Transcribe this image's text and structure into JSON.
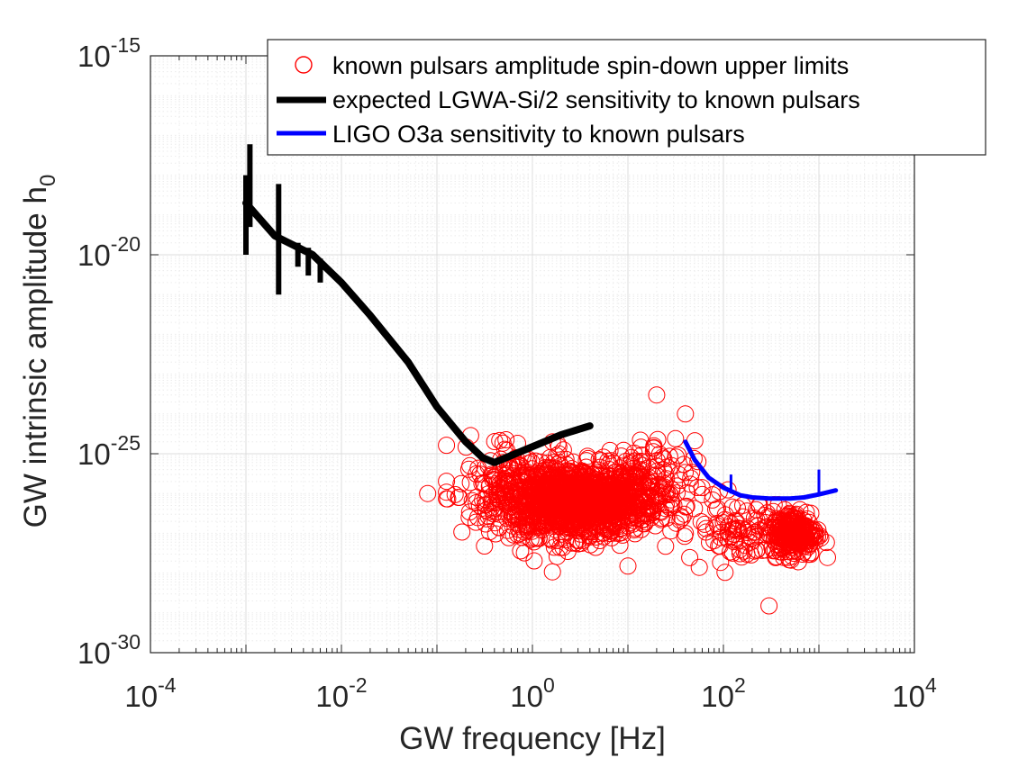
{
  "chart_data": {
    "type": "scatter",
    "xscale": "log",
    "yscale": "log",
    "xlim": [
      0.0001,
      10000
    ],
    "ylim": [
      1e-30,
      1e-15
    ],
    "grid": true,
    "minor_grid": true,
    "legend_location": "top-right",
    "xlabel": "GW frequency [Hz]",
    "ylabel_main": "GW intrinsic amplitude h",
    "ylabel_sub": "0",
    "x_ticks": [
      {
        "base": "10",
        "exp": "-4"
      },
      {
        "base": "10",
        "exp": "-2"
      },
      {
        "base": "10",
        "exp": "0"
      },
      {
        "base": "10",
        "exp": "2"
      },
      {
        "base": "10",
        "exp": "4"
      }
    ],
    "y_ticks": [
      {
        "base": "10",
        "exp": "-30"
      },
      {
        "base": "10",
        "exp": "-25"
      },
      {
        "base": "10",
        "exp": "-20"
      },
      {
        "base": "10",
        "exp": "-15"
      }
    ],
    "series": [
      {
        "name": "known pulsars amplitude spin-down upper limits",
        "kind": "scatter",
        "marker": "open-circle",
        "color": "#ff0000",
        "clusters": [
          {
            "center_log_f": 0.45,
            "center_log_h": -26.2,
            "spread_log_f": 0.42,
            "spread_log_h": 0.55,
            "count": 1400
          },
          {
            "center_log_f": -0.25,
            "center_log_h": -25.4,
            "spread_log_f": 0.25,
            "spread_log_h": 0.6,
            "count": 80
          },
          {
            "center_log_f": 1.1,
            "center_log_h": -25.8,
            "spread_log_f": 0.3,
            "spread_log_h": 0.7,
            "count": 120
          },
          {
            "center_log_f": 2.75,
            "center_log_h": -27.0,
            "spread_log_f": 0.12,
            "spread_log_h": 0.35,
            "count": 260
          },
          {
            "center_log_f": 2.2,
            "center_log_h": -26.9,
            "spread_log_f": 0.3,
            "spread_log_h": 0.5,
            "count": 110
          }
        ],
        "notable_points": [
          {
            "f": 0.08,
            "h": 1e-26
          },
          {
            "f": 20,
            "h": 3e-24
          },
          {
            "f": 300,
            "h": 1.5e-29
          },
          {
            "f": 10,
            "h": 1.5e-28
          },
          {
            "f": 40,
            "h": 1e-24
          }
        ]
      },
      {
        "name": "expected LGWA-Si/2 sensitivity to known pulsars",
        "kind": "line",
        "color": "#000000",
        "x": [
          0.001,
          0.002,
          0.005,
          0.01,
          0.02,
          0.05,
          0.1,
          0.2,
          0.3,
          0.4,
          0.6,
          1,
          2,
          4
        ],
        "y": [
          2e-19,
          3e-20,
          1e-20,
          2e-21,
          3e-22,
          2e-23,
          1.5e-24,
          2e-25,
          8e-26,
          6e-26,
          9e-26,
          1.5e-25,
          3e-25,
          5e-25
        ],
        "spikes": [
          {
            "f": 0.001,
            "h_low": 1e-20,
            "h_high": 1e-18
          },
          {
            "f": 0.0011,
            "h_low": 5e-20,
            "h_high": 6e-18
          },
          {
            "f": 0.0022,
            "h_low": 1e-21,
            "h_high": 6e-19
          },
          {
            "f": 0.0035,
            "h_low": 5e-21,
            "h_high": 2e-20
          },
          {
            "f": 0.0045,
            "h_low": 3e-21,
            "h_high": 1.5e-20
          },
          {
            "f": 0.006,
            "h_low": 2e-21,
            "h_high": 8e-21
          }
        ]
      },
      {
        "name": "LIGO O3a sensitivity to known pulsars",
        "kind": "line",
        "color": "#0000ff",
        "x": [
          40,
          50,
          70,
          100,
          150,
          200,
          300,
          500,
          700,
          1000,
          1500
        ],
        "y": [
          2e-25,
          7e-26,
          2.5e-26,
          1.4e-26,
          9e-27,
          8e-27,
          7.5e-27,
          7.5e-27,
          8e-27,
          9.5e-27,
          1.2e-26
        ],
        "spikes": [
          {
            "f": 120,
            "h_low": 1e-26,
            "h_high": 3e-26
          },
          {
            "f": 1000,
            "h_low": 1e-26,
            "h_high": 4e-26
          }
        ]
      }
    ]
  }
}
